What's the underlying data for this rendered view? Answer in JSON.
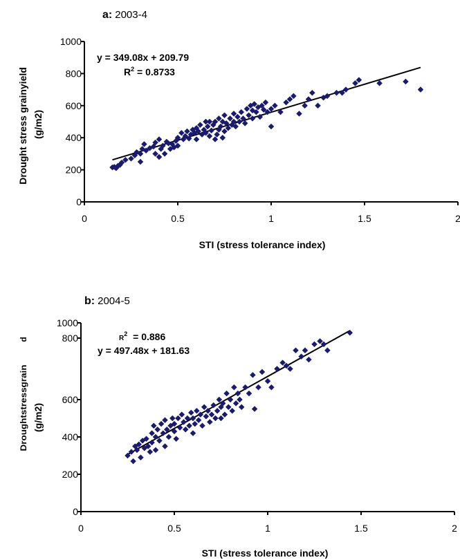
{
  "chart_data": [
    {
      "type": "scatter",
      "panel_label": "a:",
      "panel_subtitle": "2003-4",
      "xlabel": "STI (stress tolerance index)",
      "ylabel_line1": "Drought  stress grainyield",
      "ylabel_line2": "(g/m2)",
      "xlim": [
        0,
        2
      ],
      "ylim": [
        0,
        1000
      ],
      "x_ticks": [
        "0",
        "0.5",
        "1",
        "1.5",
        "2"
      ],
      "y_ticks": [
        "0",
        "200",
        "400",
        "600",
        "800",
        "1000"
      ],
      "grid": false,
      "equation": "y = 349.08x + 209.79",
      "r2_prefix": "R",
      "r2_sup": "2",
      "r2_value": " = 0.8733",
      "trendline": {
        "slope": 349.08,
        "intercept": 209.79,
        "x_range": [
          0.15,
          1.8
        ]
      },
      "marker_color": "#1a1a6e",
      "points": [
        [
          0.15,
          215
        ],
        [
          0.16,
          218
        ],
        [
          0.17,
          210
        ],
        [
          0.18,
          225
        ],
        [
          0.19,
          230
        ],
        [
          0.2,
          245
        ],
        [
          0.22,
          262
        ],
        [
          0.25,
          270
        ],
        [
          0.27,
          290
        ],
        [
          0.28,
          310
        ],
        [
          0.3,
          250
        ],
        [
          0.3,
          300
        ],
        [
          0.31,
          330
        ],
        [
          0.32,
          360
        ],
        [
          0.33,
          320
        ],
        [
          0.35,
          335
        ],
        [
          0.37,
          345
        ],
        [
          0.38,
          300
        ],
        [
          0.38,
          370
        ],
        [
          0.4,
          280
        ],
        [
          0.4,
          390
        ],
        [
          0.41,
          330
        ],
        [
          0.42,
          350
        ],
        [
          0.43,
          300
        ],
        [
          0.44,
          375
        ],
        [
          0.45,
          365
        ],
        [
          0.46,
          330
        ],
        [
          0.47,
          360
        ],
        [
          0.48,
          340
        ],
        [
          0.49,
          380
        ],
        [
          0.5,
          350
        ],
        [
          0.5,
          400
        ],
        [
          0.52,
          430
        ],
        [
          0.53,
          390
        ],
        [
          0.54,
          410
        ],
        [
          0.55,
          440
        ],
        [
          0.56,
          395
        ],
        [
          0.57,
          420
        ],
        [
          0.58,
          450
        ],
        [
          0.59,
          430
        ],
        [
          0.6,
          390
        ],
        [
          0.6,
          460
        ],
        [
          0.61,
          440
        ],
        [
          0.62,
          480
        ],
        [
          0.63,
          420
        ],
        [
          0.64,
          450
        ],
        [
          0.65,
          500
        ],
        [
          0.65,
          430
        ],
        [
          0.66,
          470
        ],
        [
          0.67,
          410
        ],
        [
          0.67,
          500
        ],
        [
          0.68,
          445
        ],
        [
          0.69,
          480
        ],
        [
          0.7,
          390
        ],
        [
          0.7,
          500
        ],
        [
          0.71,
          420
        ],
        [
          0.72,
          450
        ],
        [
          0.72,
          520
        ],
        [
          0.73,
          470
        ],
        [
          0.74,
          400
        ],
        [
          0.74,
          500
        ],
        [
          0.75,
          440
        ],
        [
          0.75,
          540
        ],
        [
          0.76,
          490
        ],
        [
          0.77,
          460
        ],
        [
          0.78,
          520
        ],
        [
          0.79,
          480
        ],
        [
          0.8,
          550
        ],
        [
          0.8,
          500
        ],
        [
          0.81,
          470
        ],
        [
          0.82,
          530
        ],
        [
          0.83,
          500
        ],
        [
          0.84,
          560
        ],
        [
          0.85,
          520
        ],
        [
          0.86,
          490
        ],
        [
          0.87,
          580
        ],
        [
          0.88,
          540
        ],
        [
          0.89,
          600
        ],
        [
          0.9,
          570
        ],
        [
          0.9,
          520
        ],
        [
          0.91,
          610
        ],
        [
          0.92,
          560
        ],
        [
          0.93,
          590
        ],
        [
          0.94,
          530
        ],
        [
          0.95,
          600
        ],
        [
          0.96,
          575
        ],
        [
          0.97,
          620
        ],
        [
          0.98,
          560
        ],
        [
          1.0,
          580
        ],
        [
          1.0,
          470
        ],
        [
          1.02,
          600
        ],
        [
          1.05,
          560
        ],
        [
          1.08,
          620
        ],
        [
          1.1,
          640
        ],
        [
          1.12,
          660
        ],
        [
          1.15,
          550
        ],
        [
          1.18,
          600
        ],
        [
          1.2,
          640
        ],
        [
          1.22,
          680
        ],
        [
          1.25,
          600
        ],
        [
          1.28,
          650
        ],
        [
          1.3,
          660
        ],
        [
          1.35,
          680
        ],
        [
          1.38,
          680
        ],
        [
          1.4,
          700
        ],
        [
          1.45,
          740
        ],
        [
          1.47,
          760
        ],
        [
          1.58,
          740
        ],
        [
          1.72,
          750
        ],
        [
          1.8,
          700
        ]
      ]
    },
    {
      "type": "scatter",
      "panel_label": "b:",
      "panel_subtitle": "2004-5",
      "xlabel": "STI (stress tolerance index)",
      "ylabel_line1": "Droughtstressgrain",
      "ylabel_line1b": "d",
      "ylabel_line2": "(g/m2)",
      "xlim": [
        0,
        2
      ],
      "ylim": [
        0,
        1000
      ],
      "x_ticks": [
        "0",
        "0.5",
        "1",
        "1.5",
        "2"
      ],
      "y_ticks": [
        "0",
        "200",
        "400",
        "600",
        "800",
        "1000"
      ],
      "grid": false,
      "equation": "y = 497.48x + 181.63",
      "r2_prefix": "R",
      "r2_sup": "2",
      "r2_value": " = 0.886",
      "trendline": {
        "slope": 497.48,
        "intercept": 181.63,
        "x_range": [
          0.25,
          1.44
        ]
      },
      "marker_color": "#1a1a6e",
      "points": [
        [
          0.25,
          300
        ],
        [
          0.27,
          320
        ],
        [
          0.28,
          270
        ],
        [
          0.29,
          350
        ],
        [
          0.3,
          330
        ],
        [
          0.31,
          360
        ],
        [
          0.32,
          290
        ],
        [
          0.33,
          380
        ],
        [
          0.34,
          340
        ],
        [
          0.35,
          390
        ],
        [
          0.36,
          350
        ],
        [
          0.37,
          320
        ],
        [
          0.38,
          420
        ],
        [
          0.38,
          370
        ],
        [
          0.39,
          460
        ],
        [
          0.4,
          330
        ],
        [
          0.4,
          400
        ],
        [
          0.41,
          440
        ],
        [
          0.42,
          380
        ],
        [
          0.43,
          470
        ],
        [
          0.44,
          420
        ],
        [
          0.45,
          350
        ],
        [
          0.45,
          490
        ],
        [
          0.46,
          440
        ],
        [
          0.47,
          400
        ],
        [
          0.48,
          460
        ],
        [
          0.49,
          500
        ],
        [
          0.5,
          430
        ],
        [
          0.5,
          470
        ],
        [
          0.51,
          390
        ],
        [
          0.52,
          500
        ],
        [
          0.53,
          450
        ],
        [
          0.54,
          520
        ],
        [
          0.55,
          480
        ],
        [
          0.56,
          440
        ],
        [
          0.57,
          500
        ],
        [
          0.58,
          460
        ],
        [
          0.59,
          530
        ],
        [
          0.6,
          500
        ],
        [
          0.6,
          420
        ],
        [
          0.61,
          470
        ],
        [
          0.62,
          540
        ],
        [
          0.63,
          490
        ],
        [
          0.64,
          520
        ],
        [
          0.65,
          460
        ],
        [
          0.66,
          560
        ],
        [
          0.67,
          510
        ],
        [
          0.68,
          540
        ],
        [
          0.69,
          480
        ],
        [
          0.7,
          520
        ],
        [
          0.71,
          570
        ],
        [
          0.72,
          500
        ],
        [
          0.73,
          540
        ],
        [
          0.74,
          600
        ],
        [
          0.75,
          560
        ],
        [
          0.75,
          500
        ],
        [
          0.76,
          580
        ],
        [
          0.77,
          520
        ],
        [
          0.78,
          620
        ],
        [
          0.79,
          560
        ],
        [
          0.8,
          600
        ],
        [
          0.81,
          540
        ],
        [
          0.82,
          640
        ],
        [
          0.83,
          580
        ],
        [
          0.84,
          620
        ],
        [
          0.85,
          600
        ],
        [
          0.86,
          560
        ],
        [
          0.88,
          640
        ],
        [
          0.9,
          620
        ],
        [
          0.92,
          680
        ],
        [
          0.93,
          550
        ],
        [
          0.95,
          640
        ],
        [
          0.97,
          690
        ],
        [
          1.0,
          660
        ],
        [
          1.02,
          640
        ],
        [
          1.05,
          700
        ],
        [
          1.08,
          720
        ],
        [
          1.1,
          710
        ],
        [
          1.12,
          700
        ],
        [
          1.15,
          760
        ],
        [
          1.18,
          740
        ],
        [
          1.2,
          760
        ],
        [
          1.22,
          730
        ],
        [
          1.25,
          780
        ],
        [
          1.28,
          790
        ],
        [
          1.3,
          780
        ],
        [
          1.32,
          760
        ],
        [
          1.44,
          870
        ]
      ]
    }
  ]
}
